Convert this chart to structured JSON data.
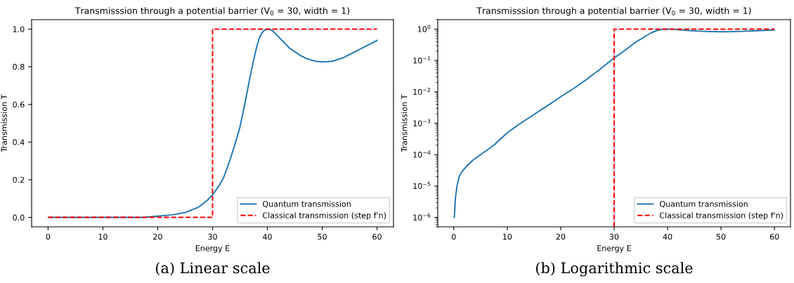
{
  "chart_data": [
    {
      "type": "line",
      "title": "Transmisssion through a potential barrier (V$_{0}$ = 30, width = 1)",
      "xlabel": "Energy E",
      "ylabel": "Transmission T",
      "annotations": [
        "(a) Linear scale"
      ],
      "xlim": [
        -3,
        63
      ],
      "xticks": [
        0,
        10,
        20,
        30,
        40,
        50,
        60
      ],
      "ylim": [
        -0.05,
        1.05
      ],
      "yticks": [
        {
          "value": 0,
          "label": "0.0"
        },
        0.2,
        0.4,
        0.6,
        0.8,
        {
          "value": 1,
          "label": "1.0"
        }
      ],
      "legend": "lower right",
      "grid": false,
      "series": [
        {
          "name": "Quantum transmission",
          "color": "#1f77b4",
          "line_style": "solid",
          "x": [
            0.1,
            5,
            10,
            15,
            17.5,
            20,
            22.5,
            25,
            27.5,
            29,
            30,
            31,
            32,
            33,
            34,
            35,
            36,
            37,
            38,
            38.5,
            39,
            39.5,
            40,
            40.5,
            41,
            42,
            43,
            44,
            45,
            46,
            47,
            48,
            49,
            50,
            51,
            52,
            54,
            56,
            58,
            60
          ],
          "values": [
            0,
            0,
            0,
            0,
            0,
            0.007,
            0.013,
            0.026,
            0.055,
            0.09,
            0.12,
            0.16,
            0.21,
            0.29,
            0.38,
            0.48,
            0.62,
            0.77,
            0.9,
            0.95,
            0.98,
            0.995,
            1.0,
            0.998,
            0.99,
            0.96,
            0.93,
            0.9,
            0.88,
            0.86,
            0.845,
            0.835,
            0.828,
            0.826,
            0.827,
            0.83,
            0.85,
            0.88,
            0.91,
            0.94
          ]
        },
        {
          "name": "Classical transmission (step f'n)",
          "color": "#ff0000",
          "line_style": "dashed",
          "x": [
            0,
            30,
            30,
            60
          ],
          "values": [
            0,
            0,
            1,
            1
          ]
        }
      ]
    },
    {
      "type": "line",
      "title": "Transmisssion through a potential barrier (V$_{0}$ = 30, width = 1)",
      "xlabel": "Energy E",
      "ylabel": "Transmission T",
      "annotations": [
        "(b) Logarithmic scale"
      ],
      "log": "y",
      "xlim": [
        -3,
        63
      ],
      "xticks": [
        0,
        10,
        20,
        30,
        40,
        50,
        60
      ],
      "ylim": [
        5e-07,
        2
      ],
      "yticks": [
        {
          "value": 1e-06,
          "label": "10$^{−6}$"
        },
        {
          "value": 1e-05,
          "label": "10$^{−5}$"
        },
        {
          "value": 0.0001,
          "label": "10$^{−4}$"
        },
        {
          "value": 0.001,
          "label": "10$^{−3}$"
        },
        {
          "value": 0.01,
          "label": "10$^{−2}$"
        },
        {
          "value": 0.1,
          "label": "10$^{−1}$"
        },
        {
          "value": 1,
          "label": "10$^{0}$"
        }
      ],
      "legend": "lower right",
      "grid": false,
      "series": [
        {
          "name": "Quantum transmission",
          "color": "#1f77b4",
          "line_style": "solid",
          "x": [
            0.1,
            0.3,
            0.6,
            1,
            1.5,
            2.5,
            3.5,
            5,
            7.5,
            10,
            12.5,
            15,
            17.5,
            20,
            22.5,
            25,
            27.5,
            30,
            32,
            34,
            35,
            36,
            37,
            38,
            39,
            40,
            41,
            42,
            44,
            46,
            48,
            50,
            52,
            54,
            56,
            58,
            60
          ],
          "values": [
            1e-06,
            4e-06,
            1e-05,
            2e-05,
            2.8e-05,
            4.5e-05,
            6.5e-05,
            0.0001,
            0.0002,
            0.0005,
            0.001,
            0.0019,
            0.0036,
            0.007,
            0.013,
            0.026,
            0.055,
            0.12,
            0.21,
            0.38,
            0.48,
            0.62,
            0.77,
            0.9,
            0.98,
            1.0,
            0.99,
            0.96,
            0.9,
            0.86,
            0.835,
            0.826,
            0.83,
            0.85,
            0.88,
            0.91,
            0.94
          ]
        },
        {
          "name": "Classical transmission (step f'n)",
          "color": "#ff0000",
          "line_style": "dashed",
          "x": [
            30,
            30,
            60
          ],
          "values": [
            5e-07,
            1,
            1
          ]
        }
      ]
    }
  ]
}
